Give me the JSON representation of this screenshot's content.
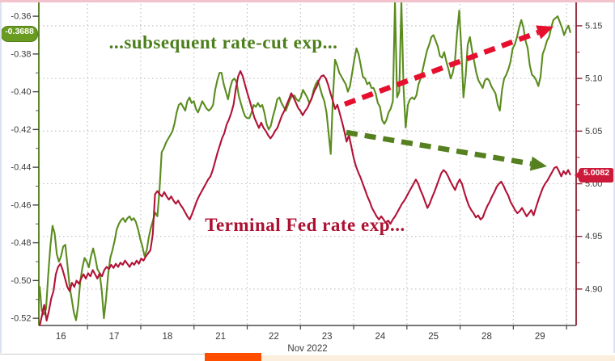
{
  "frame": {
    "top_border_color": "#f2c3cc",
    "side_border_color": "#dde2f3",
    "footer": {
      "left_bg": "#ffffff",
      "left_hairline": "#cccccc",
      "orange_bg": "#ff4e00",
      "cream_bg": "#fbeedd"
    }
  },
  "chart_data": {
    "type": "line",
    "title": "",
    "x_axis": {
      "unit_label": "Nov 2022",
      "tick_labels": [
        "16",
        "17",
        "18",
        "21",
        "22",
        "23",
        "24",
        "25",
        "28",
        "29"
      ],
      "label_color": "#3a3a3a"
    },
    "left_axis": {
      "color": "#4f7a15",
      "label_color": "#3a3a3a",
      "tick_labels": [
        "-0.36",
        "-0.38",
        "-0.40",
        "-0.42",
        "-0.44",
        "-0.46",
        "-0.48",
        "-0.50",
        "-0.52"
      ],
      "range": [
        -0.5238,
        -0.3514
      ],
      "badge": {
        "text": "-0.3688",
        "value": -0.3688,
        "bg": "#6a9b21",
        "fg": "#ffffff"
      }
    },
    "right_axis": {
      "color": "#8e1f2f",
      "label_color": "#3a3a3a",
      "tick_labels": [
        "5.15",
        "5.10",
        "5.05",
        "5.00",
        "4.95",
        "4.90"
      ],
      "range": [
        4.8654,
        5.1745
      ],
      "badge": {
        "text": "5.0082",
        "value": 5.0082,
        "bg": "#cc1b3a",
        "fg": "#ffffff"
      }
    },
    "gridline_color": "#bdbdbd",
    "legend": "none",
    "annotations": [
      {
        "text": "...subsequent rate-cut exp...",
        "color": "#4c7e1b",
        "x": 276,
        "y": 53
      },
      {
        "text": "Terminal Fed rate exp...",
        "color": "#ac1132",
        "x": 377,
        "y": 279
      }
    ],
    "arrows": [
      {
        "name": "rate-cut-rising-arrow",
        "color": "#e60f2e",
        "from": [
          426,
          129
        ],
        "to": [
          684,
          33
        ]
      },
      {
        "name": "terminal-rate-falling-arrow",
        "color": "#55801f",
        "from": [
          428,
          164
        ],
        "to": [
          676,
          206
        ]
      }
    ],
    "series": [
      {
        "name": "subsequent rate-cut expectations",
        "axis": "left",
        "color": "#5a8c1e",
        "last_value": -0.3688,
        "values": [
          -0.503,
          -0.516,
          -0.518,
          -0.515,
          -0.497,
          -0.482,
          -0.471,
          -0.475,
          -0.486,
          -0.49,
          -0.487,
          -0.482,
          -0.481,
          -0.492,
          -0.503,
          -0.51,
          -0.517,
          -0.521,
          -0.513,
          -0.5,
          -0.493,
          -0.488,
          -0.49,
          -0.493,
          -0.487,
          -0.483,
          -0.488,
          -0.494,
          -0.496,
          -0.505,
          -0.52,
          -0.51,
          -0.497,
          -0.488,
          -0.484,
          -0.479,
          -0.473,
          -0.47,
          -0.468,
          -0.467,
          -0.469,
          -0.467,
          -0.466,
          -0.468,
          -0.467,
          -0.469,
          -0.473,
          -0.478,
          -0.482,
          -0.487,
          -0.484,
          -0.477,
          -0.472,
          -0.468,
          -0.464,
          -0.466,
          -0.452,
          -0.432,
          -0.43,
          -0.427,
          -0.425,
          -0.423,
          -0.421,
          -0.417,
          -0.411,
          -0.407,
          -0.406,
          -0.408,
          -0.41,
          -0.405,
          -0.403,
          -0.406,
          -0.405,
          -0.409,
          -0.411,
          -0.408,
          -0.405,
          -0.407,
          -0.409,
          -0.41,
          -0.409,
          -0.407,
          -0.399,
          -0.394,
          -0.39,
          -0.39,
          -0.396,
          -0.4,
          -0.404,
          -0.398,
          -0.394,
          -0.393,
          -0.395,
          -0.402,
          -0.406,
          -0.41,
          -0.413,
          -0.414,
          -0.414,
          -0.411,
          -0.407,
          -0.408,
          -0.406,
          -0.408,
          -0.407,
          -0.411,
          -0.417,
          -0.42,
          -0.418,
          -0.413,
          -0.409,
          -0.404,
          -0.403,
          -0.406,
          -0.408,
          -0.41,
          -0.407,
          -0.404,
          -0.402,
          -0.402,
          -0.404,
          -0.405,
          -0.403,
          -0.399,
          -0.401,
          -0.403,
          -0.406,
          -0.404,
          -0.399,
          -0.396,
          -0.394,
          -0.398,
          -0.402,
          -0.405,
          -0.411,
          -0.422,
          -0.433,
          -0.403,
          -0.383,
          -0.386,
          -0.39,
          -0.392,
          -0.394,
          -0.396,
          -0.4,
          -0.397,
          -0.39,
          -0.383,
          -0.377,
          -0.38,
          -0.386,
          -0.392,
          -0.393,
          -0.396,
          -0.395,
          -0.398,
          -0.398,
          -0.401,
          -0.406,
          -0.408,
          -0.415,
          -0.417,
          -0.415,
          -0.411,
          -0.409,
          -0.405,
          -0.352,
          -0.403,
          -0.4,
          -0.352,
          -0.398,
          -0.419,
          -0.407,
          -0.404,
          -0.403,
          -0.404,
          -0.402,
          -0.396,
          -0.393,
          -0.388,
          -0.383,
          -0.378,
          -0.375,
          -0.371,
          -0.37,
          -0.373,
          -0.376,
          -0.381,
          -0.382,
          -0.379,
          -0.384,
          -0.388,
          -0.393,
          -0.39,
          -0.384,
          -0.369,
          -0.357,
          -0.377,
          -0.403,
          -0.392,
          -0.375,
          -0.371,
          -0.378,
          -0.384,
          -0.39,
          -0.394,
          -0.396,
          -0.398,
          -0.394,
          -0.393,
          -0.394,
          -0.397,
          -0.399,
          -0.401,
          -0.407,
          -0.41,
          -0.399,
          -0.393,
          -0.391,
          -0.388,
          -0.384,
          -0.377,
          -0.375,
          -0.371,
          -0.366,
          -0.362,
          -0.366,
          -0.373,
          -0.377,
          -0.386,
          -0.391,
          -0.392,
          -0.394,
          -0.397,
          -0.392,
          -0.38,
          -0.377,
          -0.373,
          -0.371,
          -0.366,
          -0.362,
          -0.361,
          -0.36,
          -0.363,
          -0.366,
          -0.37,
          -0.367,
          -0.365,
          -0.3688
        ]
      },
      {
        "name": "Terminal Fed rate expectations",
        "axis": "right",
        "color": "#b11236",
        "last_value": 5.0082,
        "values": [
          4.865,
          4.875,
          4.885,
          4.87,
          4.879,
          4.891,
          4.898,
          4.914,
          4.921,
          4.924,
          4.918,
          4.91,
          4.902,
          4.898,
          4.906,
          4.902,
          4.908,
          4.905,
          4.91,
          4.914,
          4.91,
          4.915,
          4.912,
          4.918,
          4.914,
          4.91,
          4.915,
          4.912,
          4.918,
          4.921,
          4.919,
          4.923,
          4.92,
          4.924,
          4.921,
          4.925,
          4.923,
          4.927,
          4.924,
          4.921,
          4.925,
          4.923,
          4.927,
          4.924,
          4.929,
          4.927,
          4.931,
          4.934,
          4.937,
          4.952,
          4.99,
          4.993,
          4.99,
          4.988,
          4.992,
          4.988,
          4.985,
          4.988,
          4.984,
          4.981,
          4.984,
          4.98,
          4.977,
          4.973,
          4.969,
          4.966,
          4.971,
          4.977,
          4.983,
          4.988,
          4.992,
          4.996,
          5.0,
          5.004,
          5.007,
          5.013,
          5.021,
          5.029,
          5.036,
          5.043,
          5.048,
          5.056,
          5.061,
          5.067,
          5.075,
          5.09,
          5.102,
          5.107,
          5.102,
          5.094,
          5.086,
          5.079,
          5.071,
          5.063,
          5.058,
          5.053,
          5.058,
          5.053,
          5.05,
          5.046,
          5.043,
          5.046,
          5.05,
          5.053,
          5.059,
          5.065,
          5.069,
          5.075,
          5.08,
          5.086,
          5.082,
          5.077,
          5.072,
          5.069,
          5.065,
          5.069,
          5.072,
          5.077,
          5.082,
          5.088,
          5.092,
          5.098,
          5.102,
          5.103,
          5.1,
          5.094,
          5.086,
          5.079,
          5.071,
          5.075,
          5.067,
          5.059,
          5.05,
          5.04,
          5.046,
          5.036,
          5.025,
          5.017,
          5.011,
          5.006,
          5.0,
          4.994,
          4.988,
          4.983,
          4.977,
          4.973,
          4.969,
          4.966,
          4.969,
          4.966,
          4.963,
          4.965,
          4.962,
          4.966,
          4.969,
          4.973,
          4.977,
          4.981,
          4.984,
          4.988,
          4.992,
          4.996,
          5.0,
          5.004,
          5.0,
          4.994,
          4.989,
          4.983,
          4.977,
          4.981,
          4.987,
          4.992,
          4.998,
          5.004,
          5.01,
          5.013,
          5.011,
          5.007,
          5.002,
          4.998,
          4.994,
          5.0,
          5.004,
          5.0,
          4.992,
          4.985,
          4.979,
          4.975,
          4.972,
          4.968,
          4.97,
          4.966,
          4.968,
          4.974,
          4.979,
          4.983,
          4.988,
          4.992,
          4.997,
          5.0,
          5.002,
          4.998,
          4.993,
          4.989,
          4.983,
          4.979,
          4.975,
          4.972,
          4.974,
          4.977,
          4.973,
          4.969,
          4.972,
          4.975,
          4.97,
          4.977,
          4.984,
          4.99,
          4.996,
          5.0,
          5.003,
          5.007,
          5.011,
          5.015,
          5.016,
          5.012,
          5.007,
          5.012,
          5.009,
          5.013,
          5.0082
        ]
      }
    ]
  }
}
